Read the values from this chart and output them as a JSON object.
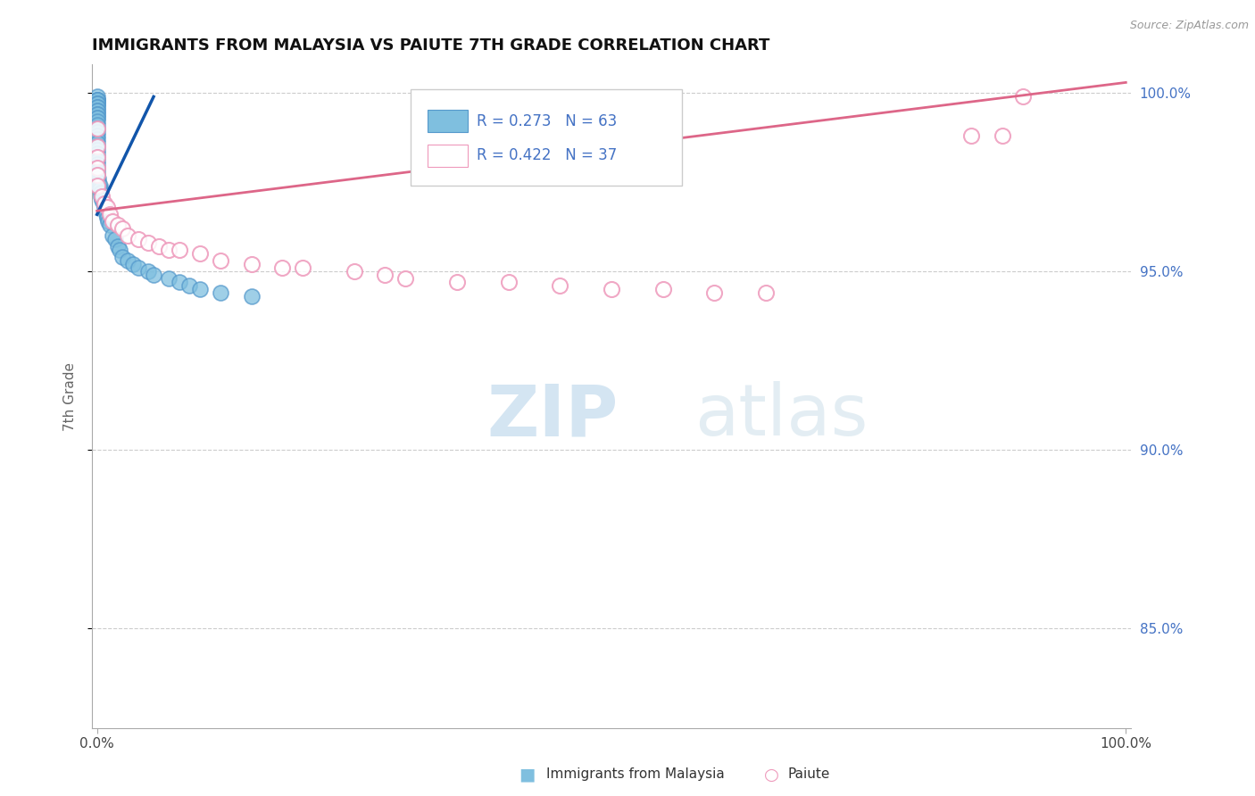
{
  "title": "IMMIGRANTS FROM MALAYSIA VS PAIUTE 7TH GRADE CORRELATION CHART",
  "source_text": "Source: ZipAtlas.com",
  "ylabel": "7th Grade",
  "blue_color_fill": "#7fbfdf",
  "blue_color_edge": "#5599cc",
  "pink_color_fill": "#ffffff",
  "pink_color_edge": "#ee99bb",
  "blue_line_color": "#1155aa",
  "pink_line_color": "#dd6688",
  "right_tick_color": "#4472c4",
  "grid_color": "#cccccc",
  "watermark_color": "#cce0f0",
  "legend_label1": "Immigrants from Malaysia",
  "legend_label2": "Paiute",
  "legend_R1": "R = 0.273",
  "legend_N1": "N = 63",
  "legend_R2": "R = 0.422",
  "legend_N2": "N = 37",
  "xlim": [
    -0.005,
    1.005
  ],
  "ylim": [
    0.822,
    1.008
  ],
  "blue_trend_x0": 0.0,
  "blue_trend_y0": 0.966,
  "blue_trend_x1": 0.055,
  "blue_trend_y1": 0.999,
  "pink_trend_x0": 0.0,
  "pink_trend_y0": 0.967,
  "pink_trend_x1": 1.0,
  "pink_trend_y1": 1.003,
  "blue_x": [
    0.0,
    0.0,
    0.0,
    0.0,
    0.0,
    0.0,
    0.0,
    0.0,
    0.0,
    0.0,
    0.0,
    0.0,
    0.0,
    0.0,
    0.0,
    0.0,
    0.0,
    0.0,
    0.0,
    0.0,
    0.0,
    0.0,
    0.0,
    0.0,
    0.0,
    0.0,
    0.0,
    0.0,
    0.0,
    0.0,
    0.0,
    0.0,
    0.001,
    0.001,
    0.002,
    0.003,
    0.003,
    0.004,
    0.004,
    0.005,
    0.006,
    0.007,
    0.008,
    0.009,
    0.01,
    0.011,
    0.012,
    0.015,
    0.018,
    0.02,
    0.022,
    0.025,
    0.03,
    0.035,
    0.04,
    0.05,
    0.055,
    0.07,
    0.08,
    0.09,
    0.1,
    0.12,
    0.15
  ],
  "blue_y": [
    0.999,
    0.998,
    0.998,
    0.998,
    0.998,
    0.997,
    0.997,
    0.997,
    0.996,
    0.996,
    0.995,
    0.995,
    0.994,
    0.994,
    0.993,
    0.993,
    0.992,
    0.991,
    0.99,
    0.989,
    0.988,
    0.987,
    0.986,
    0.985,
    0.984,
    0.983,
    0.982,
    0.981,
    0.98,
    0.979,
    0.978,
    0.977,
    0.976,
    0.975,
    0.974,
    0.974,
    0.973,
    0.972,
    0.971,
    0.97,
    0.969,
    0.968,
    0.967,
    0.966,
    0.965,
    0.964,
    0.963,
    0.96,
    0.959,
    0.957,
    0.956,
    0.954,
    0.953,
    0.952,
    0.951,
    0.95,
    0.949,
    0.948,
    0.947,
    0.946,
    0.945,
    0.944,
    0.943
  ],
  "pink_x": [
    0.0,
    0.0,
    0.0,
    0.0,
    0.0,
    0.0,
    0.005,
    0.007,
    0.01,
    0.012,
    0.015,
    0.02,
    0.025,
    0.03,
    0.04,
    0.05,
    0.06,
    0.07,
    0.08,
    0.1,
    0.12,
    0.15,
    0.18,
    0.2,
    0.25,
    0.28,
    0.3,
    0.35,
    0.4,
    0.45,
    0.5,
    0.55,
    0.6,
    0.65,
    0.85,
    0.88,
    0.9
  ],
  "pink_y": [
    0.99,
    0.985,
    0.982,
    0.979,
    0.977,
    0.974,
    0.971,
    0.969,
    0.968,
    0.966,
    0.964,
    0.963,
    0.962,
    0.96,
    0.959,
    0.958,
    0.957,
    0.956,
    0.956,
    0.955,
    0.953,
    0.952,
    0.951,
    0.951,
    0.95,
    0.949,
    0.948,
    0.947,
    0.947,
    0.946,
    0.945,
    0.945,
    0.944,
    0.944,
    0.988,
    0.988,
    0.999
  ]
}
